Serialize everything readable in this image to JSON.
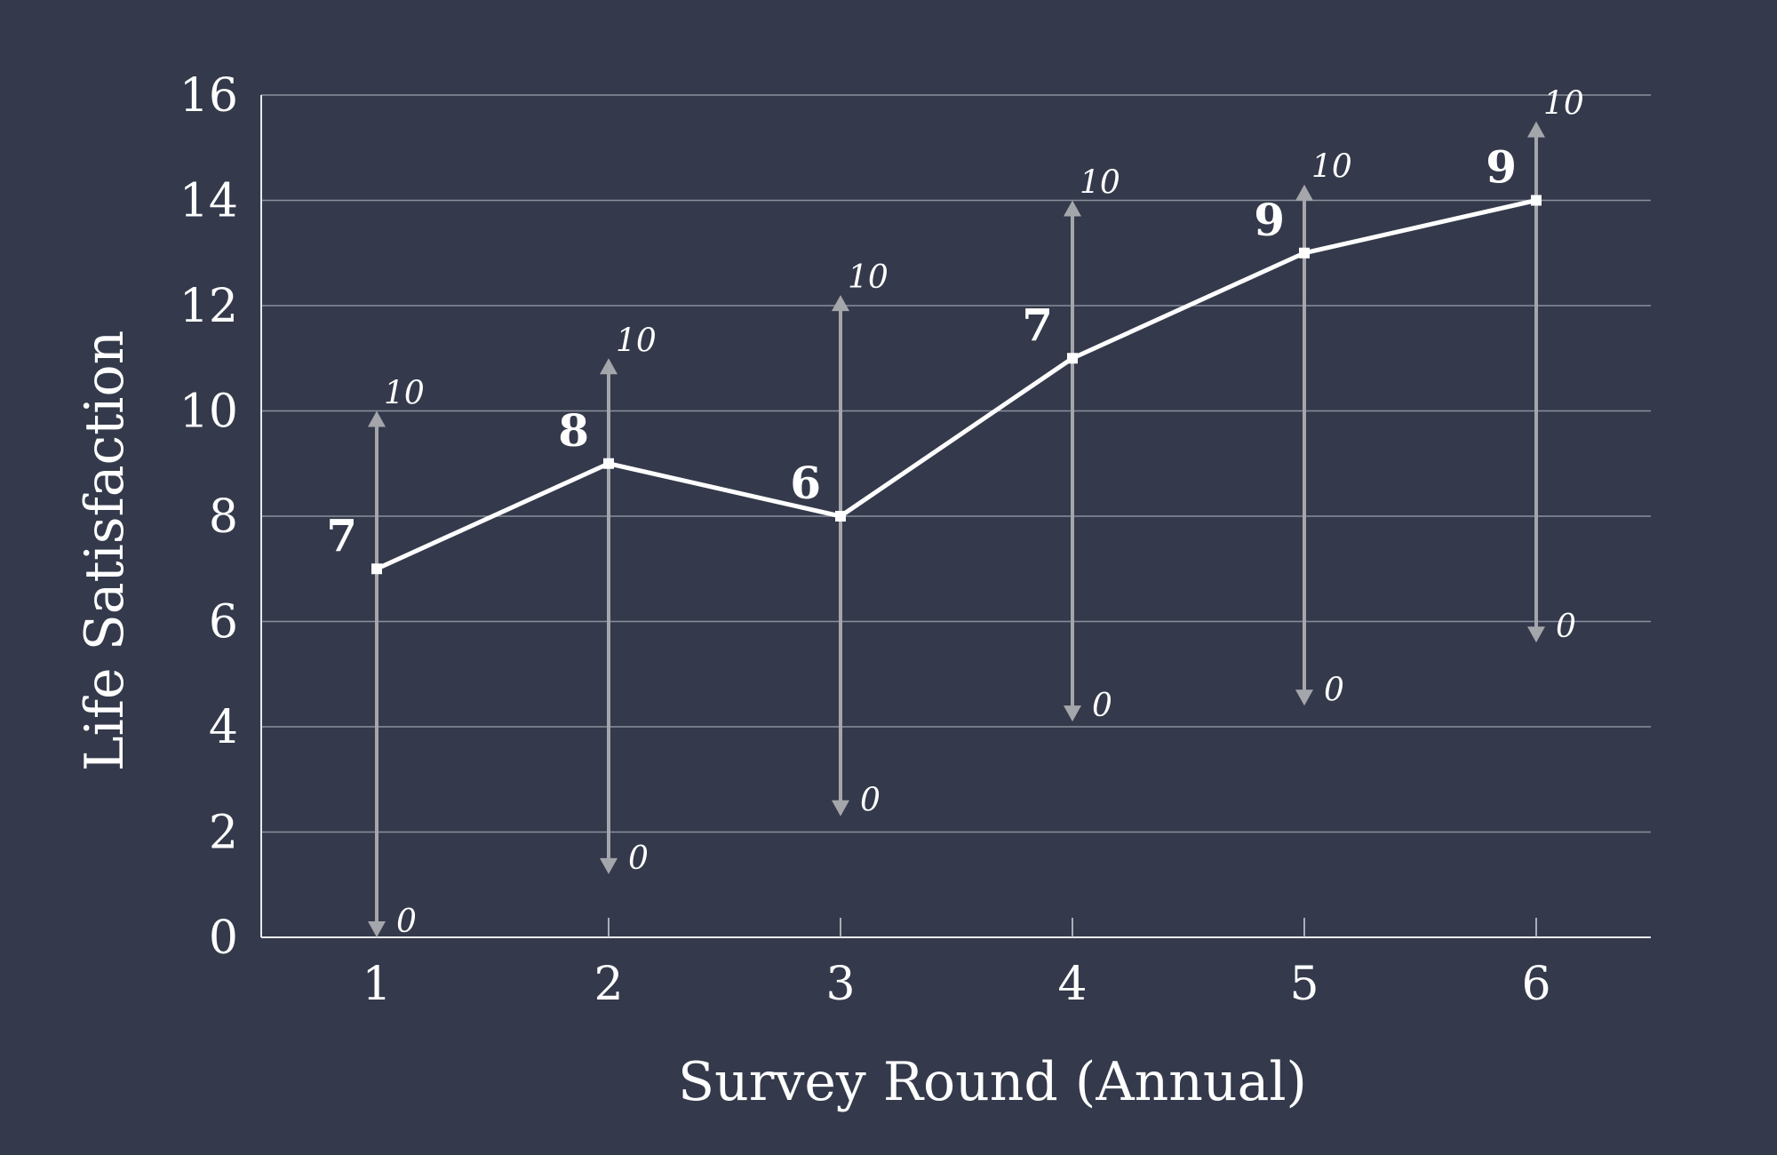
{
  "chart_data": {
    "type": "line",
    "xlabel": "Survey Round (Annual)",
    "ylabel": "Life Satisfaction",
    "x": [
      1,
      2,
      3,
      4,
      5,
      6
    ],
    "x_tick_labels": [
      "1",
      "2",
      "3",
      "4",
      "5",
      "6"
    ],
    "y_ticks": [
      0,
      2,
      4,
      6,
      8,
      10,
      12,
      14,
      16
    ],
    "y_tick_labels": [
      "0",
      "2",
      "4",
      "6",
      "8",
      "10",
      "12",
      "14",
      "16"
    ],
    "ylim": [
      0,
      16
    ],
    "grid": true,
    "series": [
      {
        "values": [
          7,
          9,
          8,
          11,
          13,
          14
        ],
        "data_labels": [
          "7",
          "8",
          "6",
          "7",
          "9",
          "9"
        ]
      }
    ],
    "scale_ranges": [
      {
        "y_low": 0.0,
        "y_high": 10.0,
        "low_label": "0",
        "high_label": "10"
      },
      {
        "y_low": 1.2,
        "y_high": 11.0,
        "low_label": "0",
        "high_label": "10"
      },
      {
        "y_low": 2.3,
        "y_high": 12.2,
        "low_label": "0",
        "high_label": "10"
      },
      {
        "y_low": 4.1,
        "y_high": 14.0,
        "low_label": "0",
        "high_label": "10"
      },
      {
        "y_low": 4.4,
        "y_high": 14.3,
        "low_label": "0",
        "high_label": "10"
      },
      {
        "y_low": 5.6,
        "y_high": 15.5,
        "low_label": "0",
        "high_label": "10"
      }
    ],
    "colors": {
      "background": "#343a4b",
      "line": "#ffffff",
      "range": "#a4a6ab",
      "grid": "#8a8f9c",
      "text": "#ffffff"
    }
  }
}
